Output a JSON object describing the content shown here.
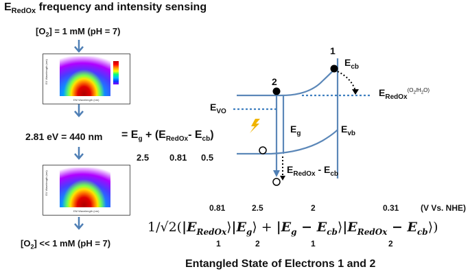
{
  "title": {
    "main": "E",
    "sub": "RedOx",
    "rest": " frequency and intensity sensing"
  },
  "left_column": {
    "condition_top": {
      "pre": "[O",
      "sub": "2",
      "post": "] = 1 mM (pH = 7)"
    },
    "condition_bottom": {
      "pre": "[O",
      "sub": "2",
      "post": "] << 1 mM (pH = 7)"
    },
    "energy_eq": "2.81 eV = 440 nm",
    "heatmap_top": {
      "ylabel": "EX Wavelength (nm)",
      "xlabel": "EM Wavelength (nm)"
    },
    "heatmap_bottom": {
      "ylabel": "EX Wavelength (nm)",
      "xlabel": "EM Wavelength (nm)"
    }
  },
  "equation": {
    "eq": "=",
    "eg": "E",
    "eg_sub": "g",
    "plus": "+ (E",
    "redox_sub": "RedOx",
    "minus": "- E",
    "cb_sub": "cb",
    "close": ")",
    "values": [
      "2.5",
      "0.81",
      "0.5"
    ]
  },
  "band_diagram": {
    "electron1": "1",
    "electron2": "2",
    "ecb": {
      "main": "E",
      "sub": "cb"
    },
    "evb": {
      "main": "E",
      "sub": "vb"
    },
    "eg": {
      "main": "E",
      "sub": "g"
    },
    "evo": {
      "main": "E",
      "sub": "VO"
    },
    "eredox": {
      "main": "E",
      "sub": "RedOx",
      "sup": "(O",
      "sup_sub": "2",
      "sup_rest": "/H",
      "sup_sub2": "2",
      "sup_end": "O)"
    },
    "eredox_minus": {
      "main": "E",
      "sub": "RedOx",
      "minus": "- E",
      "sub2": "cb"
    }
  },
  "formula": {
    "top_values": [
      "0.81",
      "2.5",
      "2",
      "0.31"
    ],
    "bottom_values": [
      "1",
      "2",
      "1",
      "2"
    ],
    "units": "(V Vs. NHE)",
    "prefix": "1/√2(",
    "t1": "|E",
    "t1_sub": "RedOx",
    "t1_close": "⟩",
    "t2": "|E",
    "t2_sub": "g",
    "t2_close": "⟩ + ",
    "t3": "|E",
    "t3_sub": "g",
    "t3_mid": " − E",
    "t3_sub2": "cb",
    "t3_close": "⟩",
    "t4": "|E",
    "t4_sub": "RedOx",
    "t4_mid": " − E",
    "t4_sub2": "cb",
    "t4_close": "⟩)"
  },
  "footer": "Entangled State of Electrons 1 and 2",
  "colors": {
    "line": "#5b87b8",
    "dotted": "#3f7fc0",
    "bolt": "#f0b400",
    "arrow": "#4f7fb5"
  }
}
